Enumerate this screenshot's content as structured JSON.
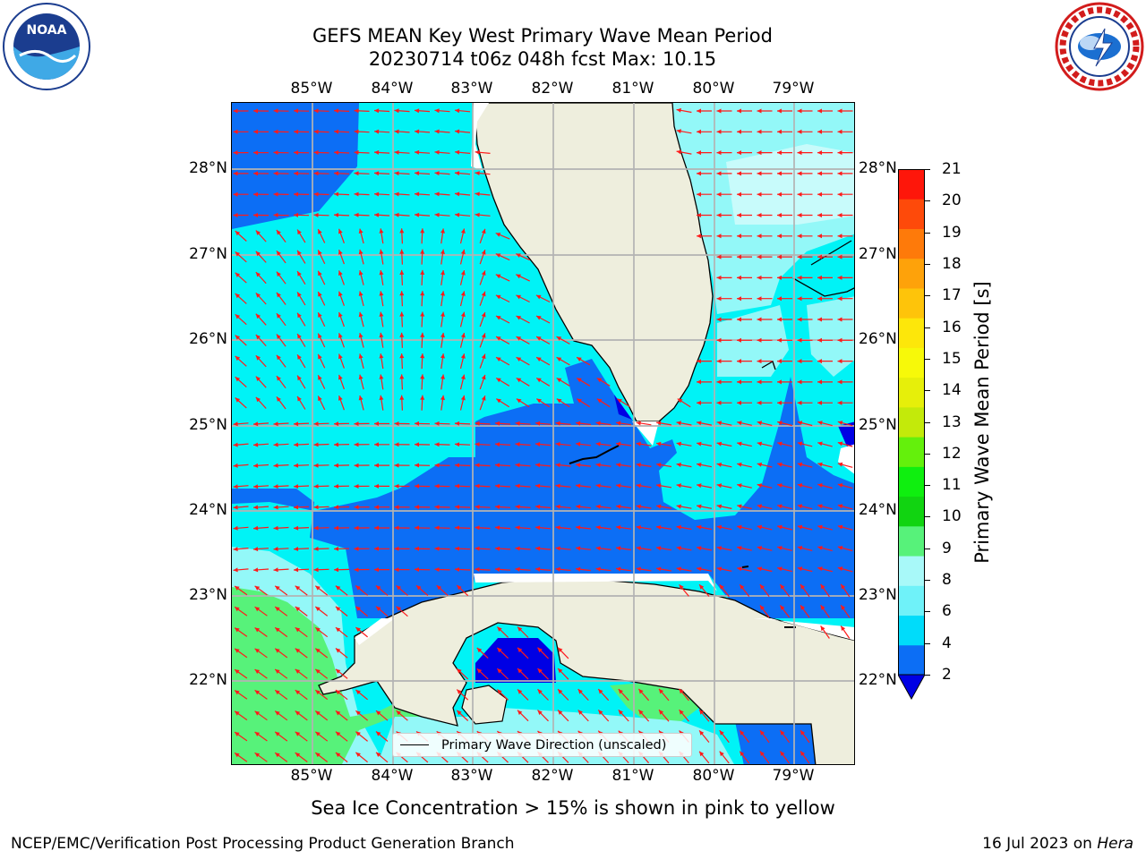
{
  "title": {
    "line1": "GEFS MEAN Key West Primary Wave Mean Period",
    "line2": "20230714 t06z 048h fcst   Max: 10.15"
  },
  "axes": {
    "lon_labels": [
      "85°W",
      "84°W",
      "83°W",
      "82°W",
      "81°W",
      "80°W",
      "79°W"
    ],
    "lat_labels": [
      "28°N",
      "27°N",
      "26°N",
      "25°N",
      "24°N",
      "23°N",
      "22°N"
    ]
  },
  "legend": {
    "text": "Primary Wave Direction (unscaled)"
  },
  "colorbar": {
    "label": "Primary Wave Mean Period [s]",
    "ticks": [
      "2",
      "4",
      "6",
      "8",
      "9",
      "10",
      "11",
      "12",
      "13",
      "14",
      "15",
      "16",
      "17",
      "18",
      "19",
      "20",
      "21"
    ],
    "colors": [
      "#0c6ef5",
      "#00dcfa",
      "#6ff2f9",
      "#a8f9f9",
      "#57f27a",
      "#11d411",
      "#0fef0f",
      "#64f00c",
      "#c3ea0a",
      "#e6ef0a",
      "#f7f909",
      "#fde70a",
      "#fec40a",
      "#fea20a",
      "#fe7a0a",
      "#fe4a0a",
      "#fe160a"
    ],
    "under_color": "#0000e4"
  },
  "map": {
    "land_color": "#eeeedd",
    "vector_color": "#ff1a1a",
    "colors": {
      "deep": "#0c6ef5",
      "cyan": "#00f3f6",
      "light": "#93f8f8",
      "pale": "#c8fbfb",
      "green": "#57f27a",
      "navy": "#0000e4"
    }
  },
  "caption": "Sea Ice Concentration > 15% is shown in pink to yellow",
  "footer": {
    "left": "NCEP/EMC/Verification Post Processing Product Generation Branch",
    "date": "16 Jul 2023 on",
    "machine": "Hera"
  },
  "logos": {
    "noaa": "NOAA",
    "nws": "NATIONAL WEATHER SERVICE"
  }
}
